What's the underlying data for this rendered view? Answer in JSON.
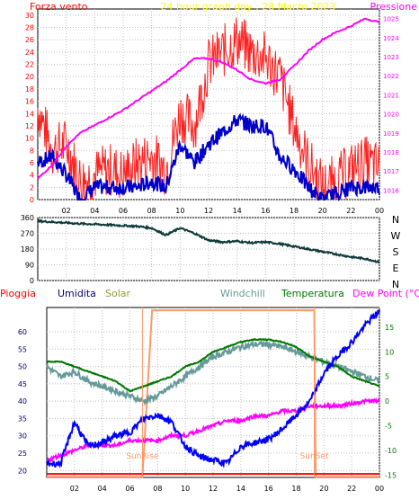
{
  "colors": {
    "wind": "#ff0000",
    "gust": "#ff2020",
    "wind_avg": "#0000cc",
    "pressure": "#ff00ff",
    "direction": "#0f3a3a",
    "rain": "#ff0000",
    "humidity": "#0000ff",
    "solar": "#ff9966",
    "windchill": "#669999",
    "temperature": "#007700",
    "dewpoint": "#ff00ff",
    "grid": "#c0c0c0",
    "axis_left": "#ff0000",
    "axis_right": "#ff00ff"
  },
  "chart_data": [
    {
      "type": "line",
      "title": "24 hour graph day : 28 Marzo 2023",
      "left_label": "Forza vento",
      "right_label": "Pressione",
      "x_ticks": [
        "02",
        "04",
        "06",
        "08",
        "10",
        "12",
        "14",
        "16",
        "18",
        "20",
        "22",
        "00"
      ],
      "hours": [
        0,
        1,
        2,
        3,
        4,
        5,
        6,
        7,
        8,
        9,
        10,
        11,
        12,
        13,
        14,
        15,
        16,
        17,
        18,
        19,
        20,
        21,
        22,
        23,
        24
      ],
      "xlim": [
        0,
        24
      ],
      "ylim_left": [
        0,
        31
      ],
      "ylim_right": [
        1015.5,
        1025.5
      ],
      "y_ticks_left": [
        "0",
        "2",
        "4",
        "6",
        "8",
        "10",
        "12",
        "14",
        "16",
        "18",
        "20",
        "22",
        "24",
        "26",
        "28",
        "30"
      ],
      "y_ticks_right": [
        "1016",
        "1017",
        "1018",
        "1019",
        "1020",
        "1021",
        "1022",
        "1023",
        "1024",
        "1025"
      ],
      "series": [
        {
          "name": "Raffica",
          "values": [
            15,
            8,
            9,
            3,
            4,
            5,
            4,
            6,
            7,
            5,
            14,
            12,
            22,
            24,
            26,
            24,
            23,
            20,
            12,
            6,
            2,
            3,
            5,
            6,
            5
          ]
        },
        {
          "name": "Media",
          "values": [
            6,
            7,
            4,
            0,
            2,
            2,
            2,
            2,
            3,
            2,
            9,
            6,
            9,
            11,
            13,
            12,
            12,
            7,
            5,
            2,
            0,
            1,
            2,
            2,
            2
          ]
        },
        {
          "name": "Pressione",
          "values": [
            1016.6,
            1017.3,
            1018.3,
            1019.0,
            1019.4,
            1019.8,
            1020.2,
            1020.7,
            1021.2,
            1021.7,
            1022.3,
            1022.9,
            1022.9,
            1022.7,
            1022.3,
            1021.8,
            1021.6,
            1021.8,
            1022.5,
            1023.3,
            1023.9,
            1024.3,
            1024.6,
            1025.0,
            1024.8
          ]
        }
      ]
    },
    {
      "type": "line",
      "right_ticks": [
        "N",
        "W",
        "S",
        "E",
        "N"
      ],
      "y_ticks": [
        "360",
        "270",
        "180",
        "90",
        "0"
      ],
      "xlim": [
        0,
        24
      ],
      "ylim": [
        0,
        360
      ],
      "hours": [
        0,
        1,
        2,
        3,
        4,
        5,
        6,
        7,
        8,
        9,
        10,
        11,
        12,
        13,
        14,
        15,
        16,
        17,
        18,
        19,
        20,
        21,
        22,
        23,
        24
      ],
      "series": [
        {
          "name": "Direzione",
          "values": [
            340,
            335,
            330,
            325,
            322,
            318,
            314,
            310,
            300,
            260,
            300,
            270,
            230,
            220,
            225,
            215,
            220,
            210,
            195,
            180,
            165,
            150,
            135,
            125,
            105
          ]
        }
      ]
    },
    {
      "type": "line",
      "legend": [
        "Pioggia",
        "Umidita",
        "Solar",
        "Windchill",
        "Temperatura",
        "Dew Point (°C)"
      ],
      "x_ticks": [
        "02",
        "04",
        "06",
        "08",
        "10",
        "12",
        "14",
        "16",
        "18",
        "20",
        "22",
        "00"
      ],
      "hours": [
        0,
        1,
        2,
        3,
        4,
        5,
        6,
        7,
        8,
        9,
        10,
        11,
        12,
        13,
        14,
        15,
        16,
        17,
        18,
        19,
        20,
        21,
        22,
        23,
        24
      ],
      "xlim": [
        0,
        24
      ],
      "ylim_left": [
        18,
        67
      ],
      "ylim_right": [
        -15.5,
        19
      ],
      "y_ticks_left": [
        "20",
        "25",
        "30",
        "35",
        "40",
        "45",
        "50",
        "55",
        "60"
      ],
      "y_ticks_right": [
        "-15",
        "-10",
        "-5",
        "0",
        "5",
        "10",
        "15"
      ],
      "annotations": [
        "SunRise",
        "SunSet"
      ],
      "series": [
        {
          "name": "Pioggia",
          "values": [
            0,
            0,
            0,
            0,
            0,
            0,
            0,
            0,
            0,
            0,
            0,
            0,
            0,
            0,
            0,
            0,
            0,
            0,
            0,
            0,
            0,
            0,
            0,
            0,
            0
          ]
        },
        {
          "name": "Umidita",
          "values": [
            22,
            22,
            34,
            27,
            28,
            30,
            31,
            35,
            36,
            34,
            27,
            24,
            23,
            22,
            27,
            28,
            29,
            32,
            36,
            40,
            48,
            53,
            57,
            62,
            66
          ]
        },
        {
          "name": "Solar",
          "values": [
            0,
            0,
            0,
            0,
            0,
            0,
            0,
            0.8,
            1,
            1,
            1,
            1,
            1,
            1,
            1,
            1,
            1,
            1,
            1,
            1,
            0,
            0,
            0,
            0,
            0
          ]
        },
        {
          "name": "Windchill",
          "values": [
            7,
            5,
            6,
            4,
            3,
            2,
            1,
            0,
            1,
            3,
            5,
            7,
            9,
            10,
            11,
            11.5,
            11.5,
            11,
            10,
            9,
            8,
            7,
            6,
            5,
            4
          ]
        },
        {
          "name": "Temperatura",
          "values": [
            8,
            8,
            7,
            6,
            5,
            4,
            2,
            3,
            4,
            5,
            7,
            8,
            10,
            11,
            12,
            12.5,
            12.5,
            12,
            11,
            9,
            8,
            7,
            5,
            4,
            3
          ]
        },
        {
          "name": "Dew Point (°C)",
          "values": [
            -12,
            -11,
            -10,
            -9,
            -9,
            -9,
            -8,
            -8,
            -8,
            -7,
            -7,
            -6,
            -5,
            -4,
            -4,
            -3,
            -3,
            -2,
            -2,
            -1,
            -1,
            -1,
            -0.5,
            0,
            0
          ]
        }
      ]
    }
  ]
}
